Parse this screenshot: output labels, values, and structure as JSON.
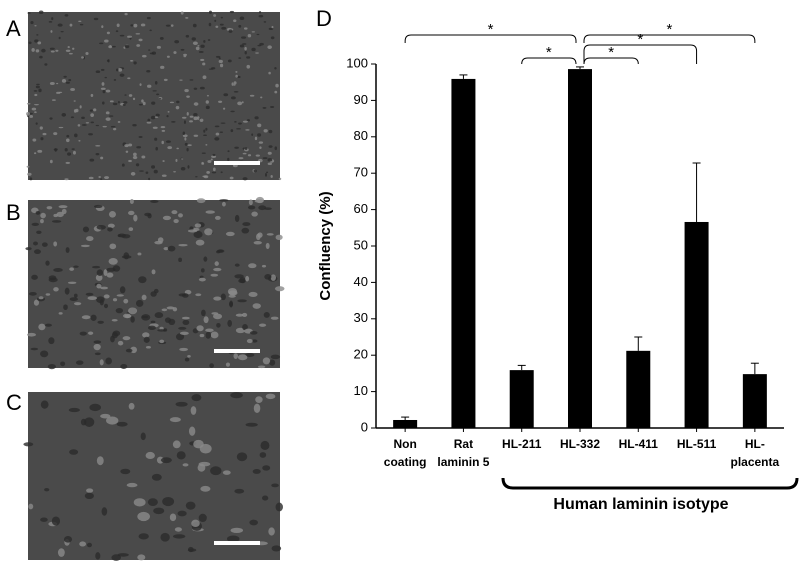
{
  "panels": [
    "A",
    "B",
    "C"
  ],
  "chart_data": {
    "type": "bar",
    "panel_label": "D",
    "ylabel": "Confluency (%)",
    "categories": [
      "Non\ncoating",
      "Rat\nlaminin 5",
      "HL-211",
      "HL-332",
      "HL-411",
      "HL-511",
      "HL-\nplacenta"
    ],
    "values": [
      2.2,
      95.9,
      15.9,
      98.6,
      21.2,
      56.6,
      14.8
    ],
    "errors": [
      0.8,
      1.1,
      1.3,
      0.6,
      3.8,
      16.2,
      3.0
    ],
    "color": "#000000",
    "ylim": [
      0,
      100
    ],
    "yticks": [
      0,
      10,
      20,
      30,
      40,
      50,
      60,
      70,
      80,
      90,
      100
    ],
    "grid": false,
    "group_label": "Human laminin isotype",
    "annotations": [
      "*",
      "*",
      "*",
      "*",
      "*"
    ]
  }
}
